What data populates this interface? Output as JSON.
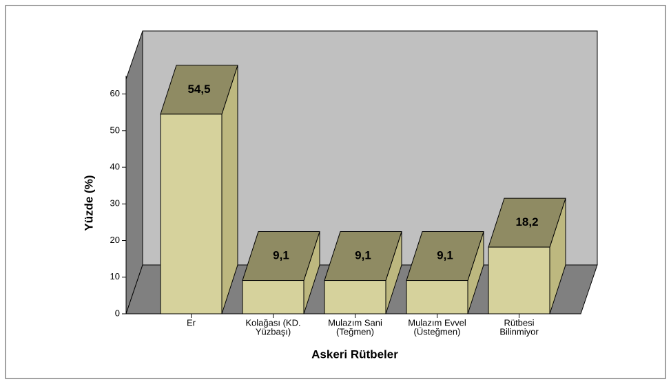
{
  "chart_data": {
    "type": "bar3d",
    "x_label": "Askeri Rütbeler",
    "y_label": "Yüzde (%)",
    "categories": [
      [
        "Er"
      ],
      [
        "Kolağası (KD.",
        "Yüzbaşı)"
      ],
      [
        "Mulazım Sani",
        "(Teğmen)"
      ],
      [
        "Mulazım Evvel",
        "(Üsteğmen)"
      ],
      [
        "Rütbesi",
        "Bilinmiyor"
      ]
    ],
    "values": [
      54.5,
      9.1,
      9.1,
      9.1,
      18.2
    ],
    "value_labels": [
      "54,5",
      "9,1",
      "9,1",
      "9,1",
      "18,2"
    ],
    "ylim": [
      0,
      65
    ],
    "yticks": [
      0,
      10,
      20,
      30,
      40,
      50,
      60
    ],
    "color": "#d6d29c",
    "top_color": "#8f8b63",
    "side_color": "#bdb87f"
  }
}
